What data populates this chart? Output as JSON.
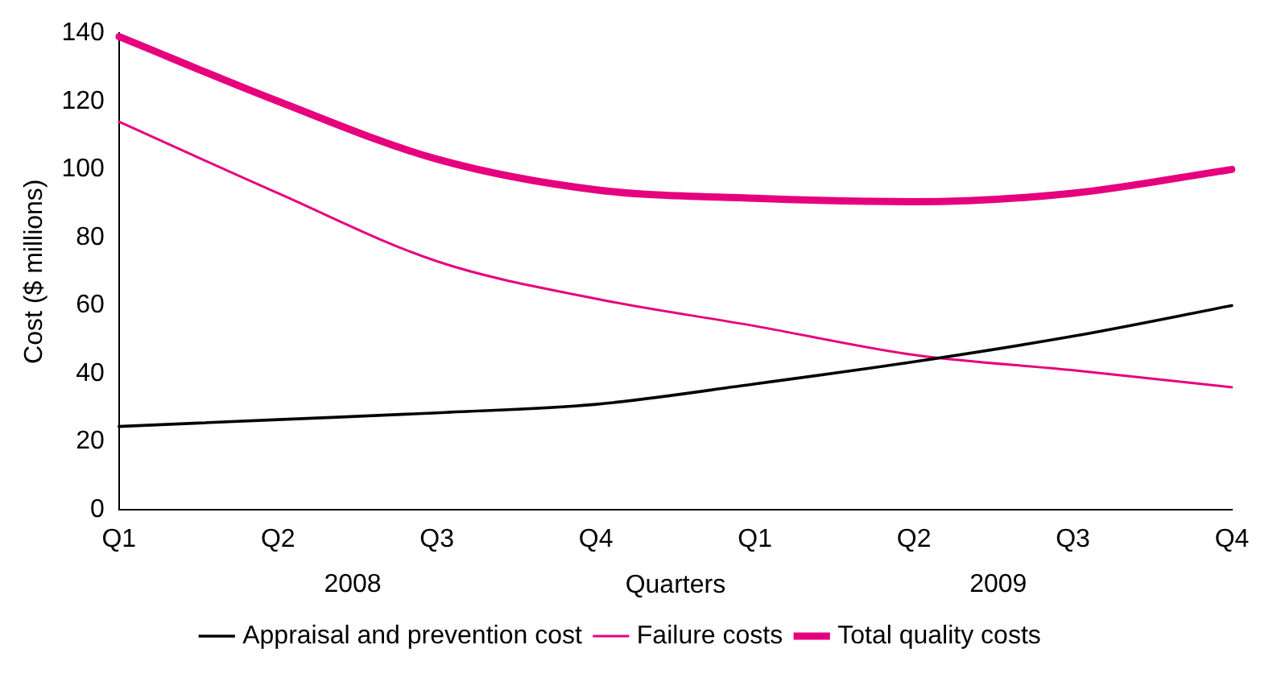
{
  "chart_data": {
    "type": "line",
    "xlabel": "Quarters",
    "ylabel": "Cost ($ millions)",
    "categories": [
      "Q1",
      "Q2",
      "Q3",
      "Q4",
      "Q1",
      "Q2",
      "Q3",
      "Q4"
    ],
    "series": [
      {
        "name": "Appraisal and prevention cost",
        "color": "#000000",
        "values": [
          24.5,
          26.5,
          28.5,
          31,
          37,
          43.5,
          51,
          60
        ]
      },
      {
        "name": "Failure costs",
        "color": "#e6007e",
        "values": [
          114,
          93,
          73,
          62,
          54,
          45.5,
          41,
          36
        ]
      },
      {
        "name": "Total quality costs",
        "color": "#e6007e",
        "values": [
          139,
          120,
          103,
          94,
          91.5,
          90.5,
          93,
          100
        ]
      }
    ],
    "ylim": [
      0,
      140
    ],
    "yticks": [
      0,
      20,
      40,
      60,
      80,
      100,
      120,
      140
    ],
    "grid": false,
    "legend": "bottom",
    "marker": "none",
    "line_style": "solid",
    "annotations": [
      "2008",
      "2009"
    ]
  }
}
